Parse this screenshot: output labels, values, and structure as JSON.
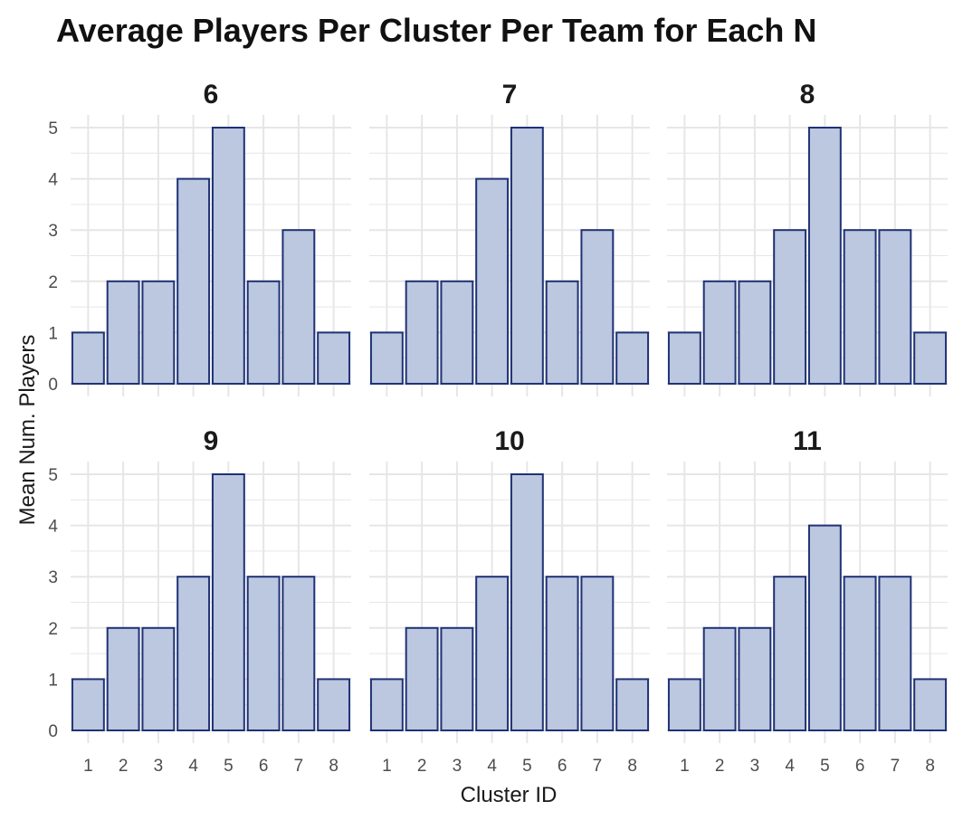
{
  "chart_data": {
    "type": "bar",
    "title": "Average Players Per Cluster Per Team for Each N",
    "xlabel": "Cluster ID",
    "ylabel": "Mean Num. Players",
    "categories": [
      "1",
      "2",
      "3",
      "4",
      "5",
      "6",
      "7",
      "8"
    ],
    "ylim": [
      0,
      5
    ],
    "yticks": [
      "0",
      "1",
      "2",
      "3",
      "4",
      "5"
    ],
    "grid": true,
    "bar_fill": "#bcc7e0",
    "bar_stroke": "#1f3275",
    "grid_color": "#e6e6e6",
    "panels": [
      {
        "label": "6",
        "values": [
          1,
          2,
          2,
          4,
          5,
          2,
          3,
          1
        ]
      },
      {
        "label": "7",
        "values": [
          1,
          2,
          2,
          4,
          5,
          2,
          3,
          1
        ]
      },
      {
        "label": "8",
        "values": [
          1,
          2,
          2,
          3,
          5,
          3,
          3,
          1
        ]
      },
      {
        "label": "9",
        "values": [
          1,
          2,
          2,
          3,
          5,
          3,
          3,
          1
        ]
      },
      {
        "label": "10",
        "values": [
          1,
          2,
          2,
          3,
          5,
          3,
          3,
          1
        ]
      },
      {
        "label": "11",
        "values": [
          1,
          2,
          2,
          3,
          4,
          3,
          3,
          1
        ]
      }
    ]
  }
}
